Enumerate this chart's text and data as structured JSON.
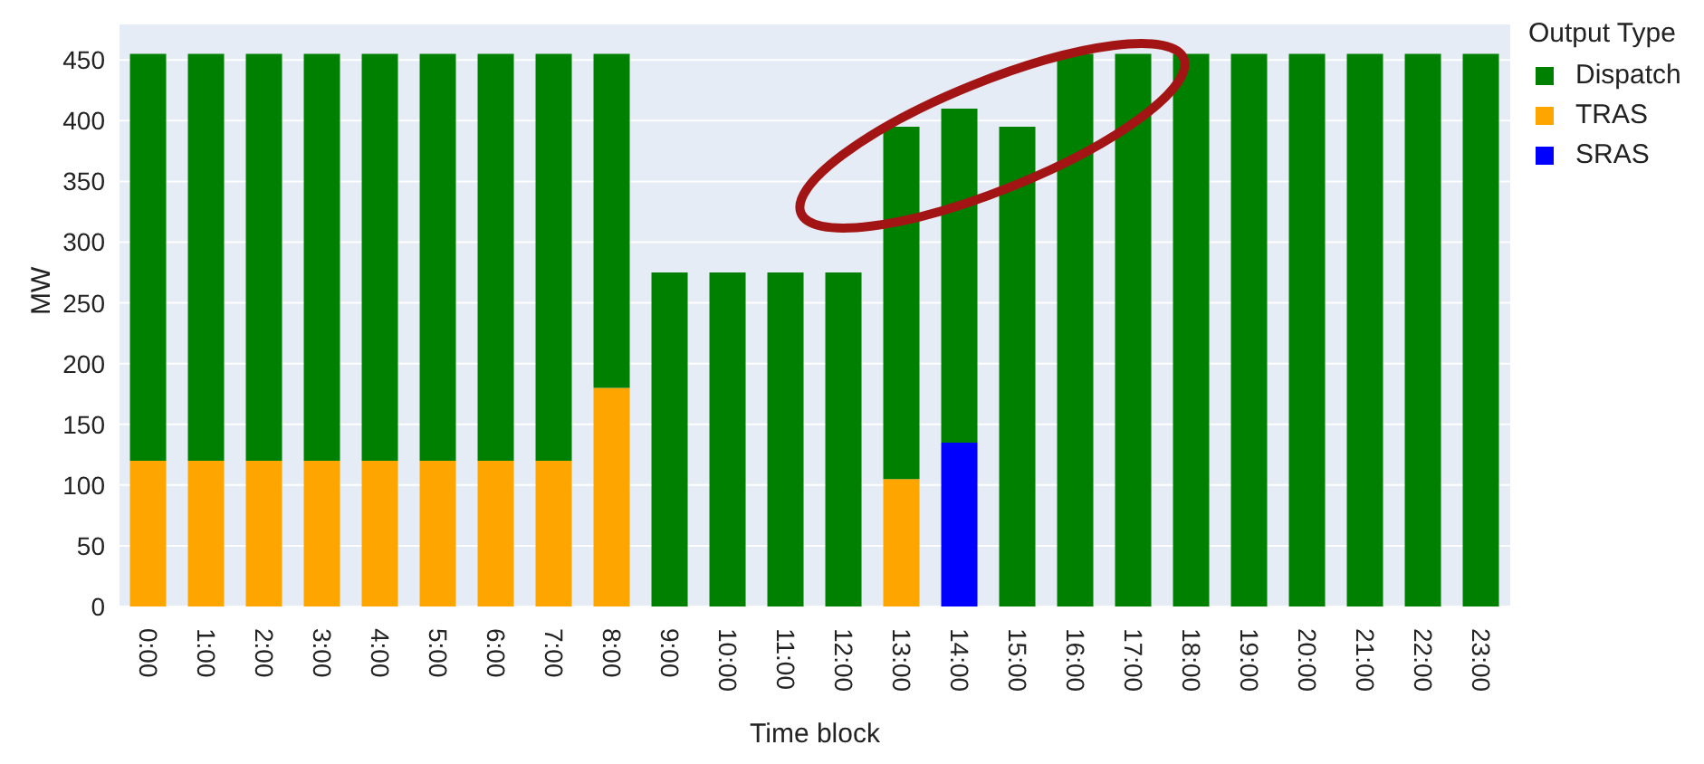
{
  "chart_data": {
    "type": "bar",
    "stacked": true,
    "xlabel": "Time block",
    "ylabel": "MW",
    "legend_title": "Output Type",
    "categories": [
      "0:00",
      "1:00",
      "2:00",
      "3:00",
      "4:00",
      "5:00",
      "6:00",
      "7:00",
      "8:00",
      "9:00",
      "10:00",
      "11:00",
      "12:00",
      "13:00",
      "14:00",
      "15:00",
      "16:00",
      "17:00",
      "18:00",
      "19:00",
      "20:00",
      "21:00",
      "22:00",
      "23:00"
    ],
    "series": [
      {
        "name": "SRAS",
        "color": "#0000ff",
        "values": [
          null,
          null,
          null,
          null,
          null,
          null,
          null,
          null,
          null,
          null,
          null,
          null,
          null,
          null,
          135,
          null,
          null,
          null,
          null,
          null,
          null,
          null,
          null,
          null
        ]
      },
      {
        "name": "TRAS",
        "color": "#ffa500",
        "values": [
          120,
          120,
          120,
          120,
          120,
          120,
          120,
          120,
          180,
          null,
          null,
          null,
          null,
          105,
          null,
          null,
          null,
          null,
          null,
          null,
          null,
          null,
          null,
          null
        ]
      },
      {
        "name": "Dispatch",
        "color": "#008000",
        "values": [
          335,
          335,
          335,
          335,
          335,
          335,
          335,
          335,
          275,
          275,
          275,
          275,
          275,
          290,
          275,
          395,
          455,
          455,
          455,
          455,
          455,
          455,
          455,
          455
        ]
      }
    ],
    "ylim": [
      0,
      480
    ],
    "yticks": [
      0,
      50,
      100,
      150,
      200,
      250,
      300,
      350,
      400,
      450
    ],
    "grid": "y",
    "legend": "right"
  }
}
